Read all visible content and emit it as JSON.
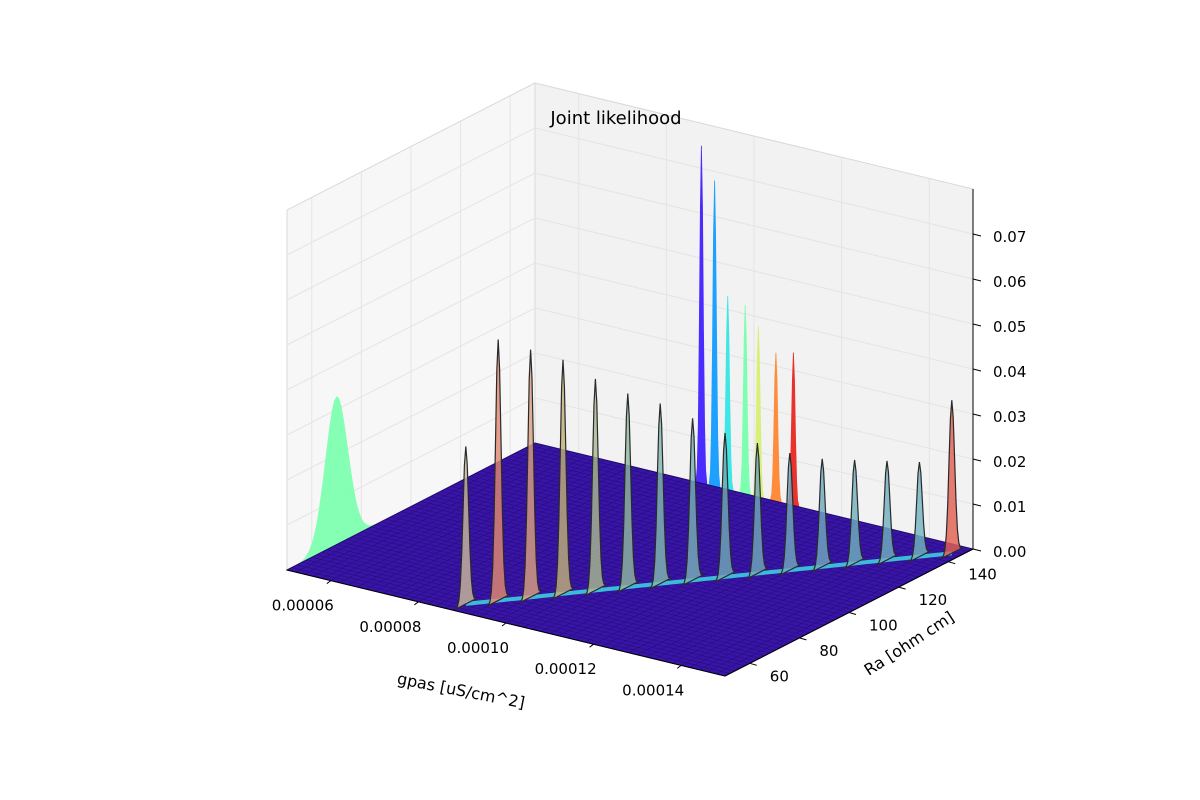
{
  "chart_data": {
    "type": "surface",
    "title": "Joint likelihood",
    "xlabel": "gpas [uS/cm^2]",
    "ylabel": "Ra [ohm cm]",
    "zlabel": "",
    "xlim": [
      5e-05,
      0.00015
    ],
    "ylim": [
      50,
      150
    ],
    "zlim": [
      0,
      0.08
    ],
    "x_ticks": [
      6e-05,
      8e-05,
      0.0001,
      0.00012,
      0.00014
    ],
    "x_tick_labels": [
      "0.00006",
      "0.00008",
      "0.00010",
      "0.00012",
      "0.00014"
    ],
    "y_ticks": [
      60,
      80,
      100,
      120,
      140
    ],
    "y_tick_labels": [
      "60",
      "80",
      "100",
      "120",
      "140"
    ],
    "z_ticks": [
      0.0,
      0.01,
      0.02,
      0.03,
      0.04,
      0.05,
      0.06,
      0.07
    ],
    "z_tick_labels": [
      "0.00",
      "0.01",
      "0.02",
      "0.03",
      "0.04",
      "0.05",
      "0.06",
      "0.07"
    ],
    "grid": true,
    "colormap": "rainbow",
    "surface_base_color": "#3a14a8",
    "wall_color": "#f2f2f2",
    "ridge": {
      "description_values": "peak likelihood along a diagonal ridge in the gpas–Ra plane",
      "gpas": [
        8.8e-05,
        9.2e-05,
        9.6e-05,
        0.0001,
        0.000104,
        0.000108,
        0.000112,
        0.000116,
        0.00012,
        0.000124,
        0.000128,
        0.000132,
        0.000136,
        0.00014,
        0.000144,
        0.000148
      ],
      "Ra": [
        55,
        61,
        67,
        73,
        79,
        85,
        91,
        97,
        103,
        109,
        115,
        121,
        127,
        133,
        139,
        145
      ],
      "peak_likelihood": [
        0.035,
        0.058,
        0.055,
        0.052,
        0.047,
        0.043,
        0.04,
        0.036,
        0.032,
        0.029,
        0.026,
        0.024,
        0.023,
        0.022,
        0.021,
        0.034
      ]
    },
    "side_projections": {
      "gpas_wall_peak": {
        "Ra": 70,
        "value": 0.033,
        "color": "#7dffb0"
      },
      "Ra_wall_peaks": [
        {
          "gpas": 8.8e-05,
          "value": 0.075,
          "color": "#4b2cff"
        },
        {
          "gpas": 9.1e-05,
          "value": 0.068,
          "color": "#1ea0ff"
        },
        {
          "gpas": 9.4e-05,
          "value": 0.043,
          "color": "#3ee6e6"
        },
        {
          "gpas": 9.8e-05,
          "value": 0.042,
          "color": "#7dffb0"
        },
        {
          "gpas": 0.000101,
          "value": 0.038,
          "color": "#d8f07a"
        },
        {
          "gpas": 0.000105,
          "value": 0.033,
          "color": "#ff8c3a"
        },
        {
          "gpas": 0.000109,
          "value": 0.034,
          "color": "#e8322b"
        }
      ]
    }
  }
}
